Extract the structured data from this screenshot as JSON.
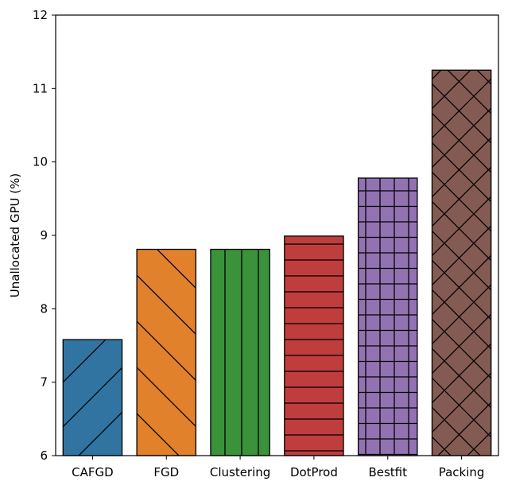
{
  "chart_data": {
    "type": "bar",
    "title": "",
    "xlabel": "",
    "ylabel": "Unallocated GPU (%)",
    "ylim": [
      6,
      12
    ],
    "yticks": [
      6,
      7,
      8,
      9,
      10,
      11,
      12
    ],
    "grid": false,
    "categories": [
      "CAFGD",
      "FGD",
      "Clustering",
      "DotProd",
      "Bestfit",
      "Packing"
    ],
    "values": [
      7.58,
      8.81,
      8.81,
      8.99,
      9.78,
      11.25
    ],
    "colors": [
      "#3274a1",
      "#e1812c",
      "#3a923a",
      "#c03d3e",
      "#9372b2",
      "#845b53"
    ],
    "hatches": [
      "forward-diagonal",
      "back-diagonal",
      "vertical",
      "horizontal",
      "grid",
      "crosshatch"
    ]
  }
}
